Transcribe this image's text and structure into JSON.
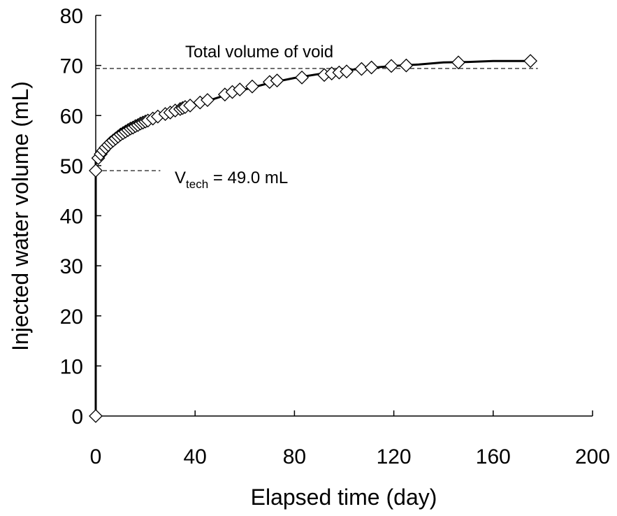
{
  "chart_data": {
    "type": "scatter",
    "xlabel": "Elapsed time (day)",
    "ylabel": "Injected water volume (mL)",
    "xlim": [
      0,
      200
    ],
    "ylim": [
      0,
      80
    ],
    "xticks": [
      0,
      40,
      80,
      120,
      160,
      200
    ],
    "yticks": [
      0,
      10,
      20,
      30,
      40,
      50,
      60,
      70,
      80
    ],
    "grid": false,
    "series": [
      {
        "marker": "diamond-open",
        "x": [
          0,
          0,
          1,
          2,
          3,
          4,
          5,
          6,
          7,
          8,
          9,
          10,
          11,
          12,
          13,
          14,
          15,
          16,
          17,
          18,
          19,
          20,
          21,
          23,
          25,
          28,
          30,
          32,
          34,
          35,
          36,
          38,
          42,
          45,
          52,
          55,
          58,
          63,
          70,
          73,
          83,
          92,
          95,
          98,
          101,
          107,
          111,
          119,
          125,
          146,
          175
        ],
        "y": [
          0,
          49.0,
          51.5,
          52.3,
          53.0,
          53.6,
          54.1,
          54.6,
          55.0,
          55.4,
          55.8,
          56.2,
          56.5,
          56.8,
          57.1,
          57.4,
          57.6,
          57.9,
          58.1,
          58.4,
          58.6,
          58.8,
          59.0,
          59.4,
          59.8,
          60.3,
          60.6,
          61.0,
          61.3,
          61.5,
          61.7,
          62.0,
          62.6,
          63.1,
          64.2,
          64.7,
          65.2,
          65.8,
          66.7,
          67.0,
          67.6,
          68.1,
          68.4,
          68.6,
          68.8,
          69.3,
          69.6,
          69.9,
          70.0,
          70.6,
          70.9
        ]
      },
      {
        "style": "solid-line",
        "x": [
          0,
          0,
          2,
          5,
          10,
          15,
          20,
          25,
          30,
          35,
          40,
          50,
          60,
          70,
          80,
          90,
          100,
          110,
          120,
          130,
          140,
          150,
          160,
          175
        ],
        "y": [
          0,
          51.0,
          52.8,
          54.3,
          56.0,
          57.4,
          58.6,
          59.6,
          60.5,
          61.3,
          62.1,
          63.7,
          65.2,
          66.5,
          67.5,
          68.3,
          69.0,
          69.5,
          69.9,
          70.2,
          70.6,
          70.7,
          70.9,
          70.9
        ]
      }
    ],
    "reference_lines": [
      {
        "label": "Total volume of void",
        "y": 69.4,
        "x_range": [
          0,
          178
        ],
        "style": "dashed"
      },
      {
        "label": "V_tech = 49.0 mL",
        "y": 49.0,
        "x_range": [
          0,
          26
        ],
        "style": "dashed"
      }
    ],
    "annotations": {
      "void_label": "Total volume of void",
      "vtech_main": "V",
      "vtech_sub": "tech",
      "vtech_rest": " = 49.0 mL"
    }
  }
}
